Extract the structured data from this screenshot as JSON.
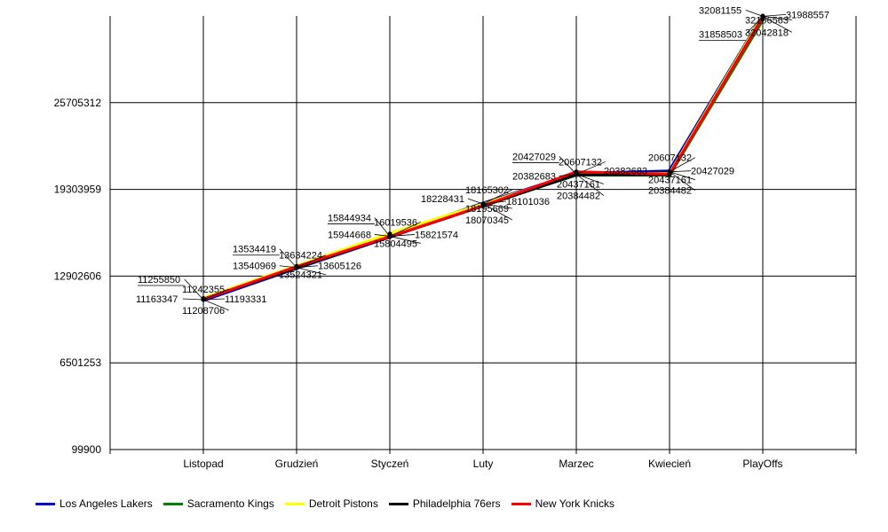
{
  "chart_data": {
    "type": "line",
    "categories": [
      "Listopad",
      "Grudzień",
      "Styczeń",
      "Luty",
      "Marzec",
      "Kwiecień",
      "PlayOffs"
    ],
    "y_ticks": [
      "99900",
      "6501253",
      "12902606",
      "19303959",
      "25705312"
    ],
    "ylim": [
      99900,
      32106665
    ],
    "grid": true,
    "legend_position": "bottom-left",
    "series": [
      {
        "name": "Los Angeles Lakers",
        "color": "#0000cc",
        "values": [
          11163347,
          13534419,
          15844934,
          18228431,
          20427029,
          20607132,
          32081155
        ]
      },
      {
        "name": "Sacramento Kings",
        "color": "#008000",
        "values": [
          11242355,
          13540969,
          15944668,
          18165302,
          20382683,
          20382683,
          31858503
        ]
      },
      {
        "name": "Detroit Pistons",
        "color": "#ffff00",
        "values": [
          11255850,
          13634224,
          16019536,
          18195669,
          20437161,
          20437161,
          32106563
        ]
      },
      {
        "name": "Philadelphia 76ers",
        "color": "#000000",
        "values": [
          11208706,
          13524321,
          15804495,
          18070345,
          20384482,
          20384482,
          32042818
        ]
      },
      {
        "name": "New York Knicks",
        "color": "#ff0000",
        "values": [
          11193331,
          13605126,
          15821574,
          18101036,
          20607132,
          20427029,
          31988557
        ]
      }
    ],
    "annotations": [
      {
        "category": 0,
        "items": [
          {
            "text": "11255850",
            "dx": -74,
            "dy": -19,
            "ul": true
          },
          {
            "text": "11242355",
            "dx": -24,
            "dy": -8
          },
          {
            "text": "11163347",
            "dx": -76,
            "dy": 3
          },
          {
            "text": "11193331",
            "dx": 24,
            "dy": 3
          },
          {
            "text": "11208706",
            "dx": -24,
            "dy": 16
          }
        ]
      },
      {
        "category": 1,
        "items": [
          {
            "text": "13534419",
            "dx": -72,
            "dy": -17,
            "ul": true
          },
          {
            "text": "13634224",
            "dx": -20,
            "dy": -10
          },
          {
            "text": "13540969",
            "dx": -72,
            "dy": 2
          },
          {
            "text": "13605126",
            "dx": 24,
            "dy": 2
          },
          {
            "text": "13524321",
            "dx": -20,
            "dy": 12
          }
        ]
      },
      {
        "category": 2,
        "items": [
          {
            "text": "15844934",
            "dx": -70,
            "dy": -17,
            "ul": true
          },
          {
            "text": "16019536",
            "dx": -18,
            "dy": -12
          },
          {
            "text": "15944668",
            "dx": -70,
            "dy": 2
          },
          {
            "text": "15821574",
            "dx": 28,
            "dy": 2
          },
          {
            "text": "15804495",
            "dx": -18,
            "dy": 12
          }
        ]
      },
      {
        "category": 3,
        "items": [
          {
            "text": "18165302",
            "dx": -20,
            "dy": -12
          },
          {
            "text": "18228431",
            "dx": -70,
            "dy": -2
          },
          {
            "text": "18101036",
            "dx": 26,
            "dy": 1
          },
          {
            "text": "18195669",
            "dx": -20,
            "dy": 9
          },
          {
            "text": "18070345",
            "dx": -20,
            "dy": 22
          }
        ]
      },
      {
        "category": 4,
        "items": [
          {
            "text": "20427029",
            "dx": -72,
            "dy": -16,
            "ul": true
          },
          {
            "text": "20607132",
            "dx": -20,
            "dy": -10
          },
          {
            "text": "20382683",
            "dx": -72,
            "dy": 6
          },
          {
            "text": "20437161",
            "dx": -22,
            "dy": 15
          },
          {
            "text": "20384482",
            "dx": -22,
            "dy": 28
          }
        ]
      },
      {
        "category": 5,
        "items": [
          {
            "text": "20607132",
            "dx": -24,
            "dy": -12
          },
          {
            "text": "20382683",
            "dx": -74,
            "dy": 3
          },
          {
            "text": "20427029",
            "dx": 24,
            "dy": 3
          },
          {
            "text": "20437161",
            "dx": -24,
            "dy": 13
          },
          {
            "text": "20384482",
            "dx": -24,
            "dy": 25
          }
        ]
      },
      {
        "category": 6,
        "items": [
          {
            "text": "32081155",
            "dx": -72,
            "dy": -3
          },
          {
            "text": "32106563",
            "dx": -20,
            "dy": 8
          },
          {
            "text": "31988557",
            "dx": 26,
            "dy": 2
          },
          {
            "text": "31858503",
            "dx": -72,
            "dy": 24,
            "ul": true
          },
          {
            "text": "32042818",
            "dx": -20,
            "dy": 22
          }
        ]
      }
    ]
  }
}
